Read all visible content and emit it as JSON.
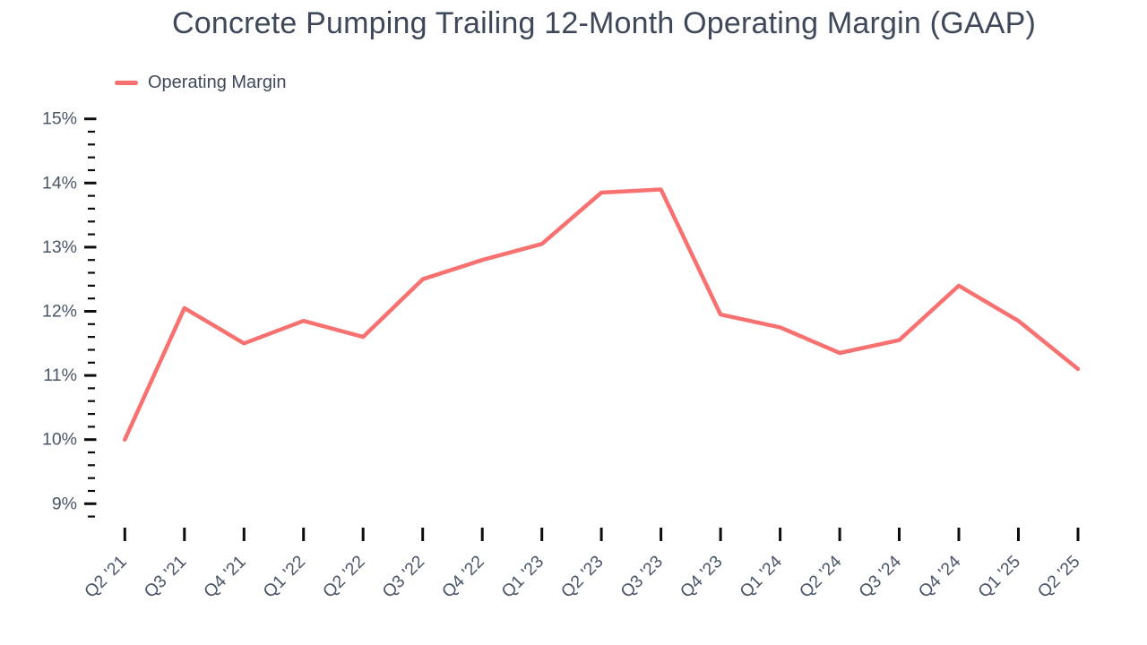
{
  "page": {
    "background": "#ffffff"
  },
  "header": {
    "title": "Concrete Pumping Trailing 12-Month Operating Margin (GAAP)"
  },
  "legend": {
    "position": "top-left",
    "items": [
      {
        "label": "Operating Margin",
        "color": "#f87171",
        "swatch": "line"
      }
    ]
  },
  "colors": {
    "line": "#f87171",
    "title_text": "#3e4859",
    "axis_label_text": "#4a5568",
    "tick": "#0d0d0d",
    "background": "#ffffff"
  },
  "chart_data": {
    "type": "line",
    "title": "Concrete Pumping Trailing 12-Month Operating Margin (GAAP)",
    "categories": [
      "Q2 '21",
      "Q3 '21",
      "Q4 '21",
      "Q1 '22",
      "Q2 '22",
      "Q3 '22",
      "Q4 '22",
      "Q1 '23",
      "Q2 '23",
      "Q3 '23",
      "Q4 '23",
      "Q1 '24",
      "Q2 '24",
      "Q3 '24",
      "Q4 '24",
      "Q1 '25",
      "Q2 '25"
    ],
    "series": [
      {
        "name": "Operating Margin",
        "color": "#f87171",
        "values": [
          10.0,
          12.05,
          11.5,
          11.85,
          11.6,
          12.5,
          12.8,
          13.05,
          13.85,
          13.9,
          11.95,
          11.75,
          11.35,
          11.55,
          12.4,
          11.85,
          11.1
        ]
      }
    ],
    "xlabel": "",
    "ylabel": "",
    "y_axis": {
      "unit": "%",
      "major_tick_labels": [
        "15%",
        "14%",
        "13%",
        "12%",
        "11%",
        "10%",
        "9%"
      ],
      "major_ticks": [
        15,
        14,
        13,
        12,
        11,
        10,
        9
      ],
      "minor_step": 0.2,
      "min": 8.8,
      "max": 15
    },
    "x_axis": {
      "tick_label_rotation_deg": -45
    },
    "grid": false,
    "legend_position": "top-left"
  }
}
